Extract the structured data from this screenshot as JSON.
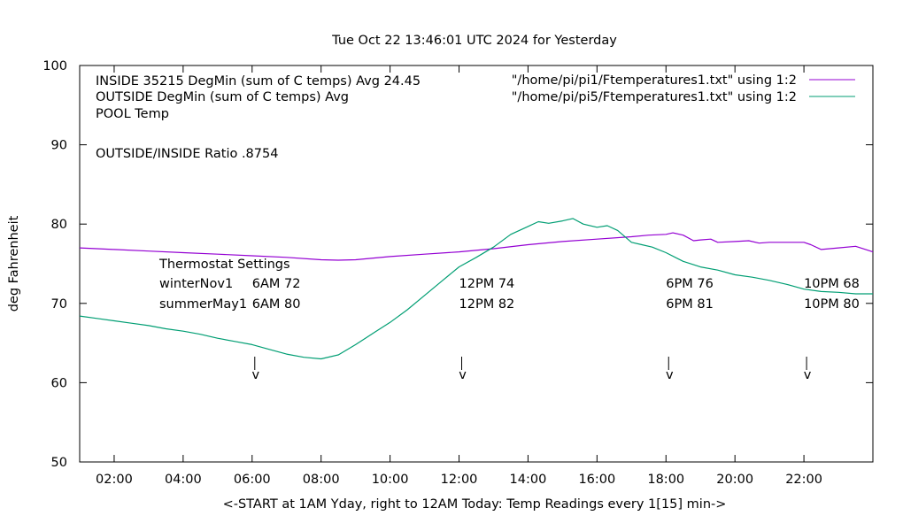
{
  "chart_data": {
    "type": "line",
    "title": "Tue Oct 22 13:46:01 UTC 2024 for Yesterday",
    "xlabel": "<-START at 1AM Yday, right to 12AM Today:  Temp Readings every 1[15] min->",
    "ylabel": "deg Fahrenheit",
    "xlim": [
      1,
      24
    ],
    "ylim": [
      50,
      100
    ],
    "x_ticks": [
      {
        "x": 2,
        "label": "02:00"
      },
      {
        "x": 4,
        "label": "04:00"
      },
      {
        "x": 6,
        "label": "06:00"
      },
      {
        "x": 8,
        "label": "08:00"
      },
      {
        "x": 10,
        "label": "10:00"
      },
      {
        "x": 12,
        "label": "12:00"
      },
      {
        "x": 14,
        "label": "14:00"
      },
      {
        "x": 16,
        "label": "16:00"
      },
      {
        "x": 18,
        "label": "18:00"
      },
      {
        "x": 20,
        "label": "20:00"
      },
      {
        "x": 22,
        "label": "22:00"
      }
    ],
    "y_ticks": [
      {
        "y": 50,
        "label": "50"
      },
      {
        "y": 60,
        "label": "60"
      },
      {
        "y": 70,
        "label": "70"
      },
      {
        "y": 80,
        "label": "80"
      },
      {
        "y": 90,
        "label": "90"
      },
      {
        "y": 100,
        "label": "100"
      }
    ],
    "grid": false,
    "legend_position": "top-right",
    "series": [
      {
        "name": "\"/home/pi/pi1/Ftemperatures1.txt\" using 1:2",
        "color": "#9400d3",
        "x": [
          1,
          1.5,
          2,
          3,
          4,
          5,
          6,
          7,
          8,
          8.5,
          9,
          10,
          11,
          12,
          13,
          14,
          15,
          16,
          17,
          17.5,
          18,
          18.2,
          18.5,
          18.8,
          19,
          19.3,
          19.5,
          20,
          20.4,
          20.7,
          21,
          22,
          22.2,
          22.5,
          23,
          23.5,
          24
        ],
        "values": [
          77.0,
          76.9,
          76.8,
          76.6,
          76.4,
          76.2,
          76.0,
          75.8,
          75.5,
          75.45,
          75.5,
          75.9,
          76.2,
          76.5,
          76.9,
          77.4,
          77.8,
          78.1,
          78.4,
          78.6,
          78.7,
          78.9,
          78.6,
          77.9,
          78.0,
          78.1,
          77.7,
          77.8,
          77.9,
          77.6,
          77.7,
          77.7,
          77.4,
          76.8,
          77.0,
          77.2,
          76.5
        ]
      },
      {
        "name": "\"/home/pi/pi5/Ftemperatures1.txt\" using 1:2",
        "color": "#009e73",
        "x": [
          1,
          1.5,
          2,
          2.5,
          3,
          3.5,
          4,
          4.5,
          5,
          5.5,
          6,
          6.5,
          7,
          7.5,
          8,
          8.5,
          9,
          9.5,
          10,
          10.5,
          11,
          11.5,
          12,
          12.5,
          13,
          13.5,
          14,
          14.3,
          14.6,
          15,
          15.3,
          15.6,
          16,
          16.3,
          16.6,
          17,
          17.3,
          17.6,
          18,
          18.5,
          19,
          19.5,
          20,
          20.5,
          21,
          21.5,
          22,
          22.5,
          23,
          23.5,
          24
        ],
        "values": [
          68.4,
          68.1,
          67.8,
          67.5,
          67.2,
          66.8,
          66.5,
          66.1,
          65.6,
          65.2,
          64.8,
          64.2,
          63.6,
          63.2,
          63.0,
          63.5,
          64.8,
          66.2,
          67.6,
          69.2,
          71.0,
          72.8,
          74.6,
          75.8,
          77.1,
          78.7,
          79.7,
          80.3,
          80.1,
          80.4,
          80.7,
          80.0,
          79.6,
          79.8,
          79.2,
          77.7,
          77.4,
          77.1,
          76.4,
          75.3,
          74.6,
          74.2,
          73.6,
          73.3,
          72.9,
          72.4,
          71.8,
          71.5,
          71.4,
          71.2,
          71.2
        ]
      }
    ],
    "annotations": {
      "corner_lines": [
        "INSIDE 35215 DegMin (sum of C temps) Avg 24.45",
        "OUTSIDE  DegMin (sum of C temps) Avg",
        "POOL Temp",
        "OUTSIDE/INSIDE Ratio .8754"
      ],
      "thermostat_header": "Thermostat Settings",
      "thermostat_rows": [
        {
          "name": "winterNov1",
          "settings": [
            {
              "x": 6,
              "label": "6AM 72"
            },
            {
              "x": 12,
              "label": "12PM 74"
            },
            {
              "x": 18,
              "label": "6PM 76"
            },
            {
              "x": 22,
              "label": "10PM 68"
            }
          ]
        },
        {
          "name": "summerMay1",
          "settings": [
            {
              "x": 6,
              "label": "6AM 80"
            },
            {
              "x": 12,
              "label": "12PM 82"
            },
            {
              "x": 18,
              "label": "6PM 81"
            },
            {
              "x": 22,
              "label": "10PM 80"
            }
          ]
        }
      ],
      "arrows": [
        {
          "x": 6,
          "label": "v"
        },
        {
          "x": 12,
          "label": "v"
        },
        {
          "x": 18,
          "label": "v"
        },
        {
          "x": 22,
          "label": "v"
        }
      ]
    }
  }
}
